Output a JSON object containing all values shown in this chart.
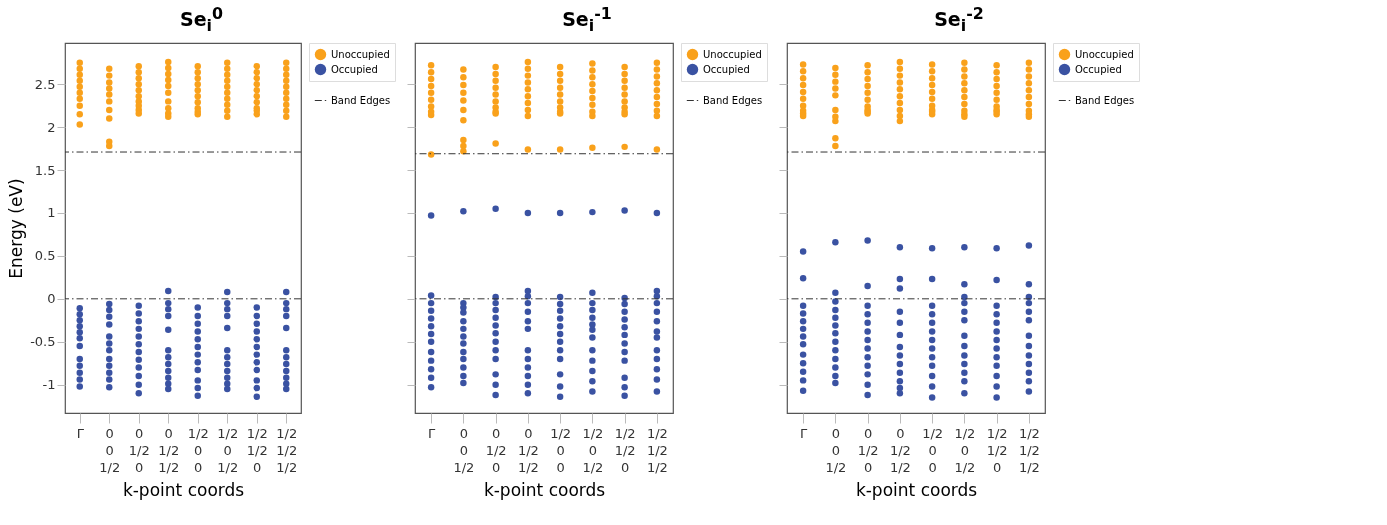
{
  "chart_data": [
    {
      "type": "scatter",
      "title": "Se$_{i}$$^{0}$",
      "xlabel": "k-point coords",
      "ylabel": "Energy (eV)",
      "categories": [
        "Γ",
        "0\n0\n1/2",
        "0\n1/2\n0",
        "0\n1/2\n1/2",
        "1/2\n0\n0",
        "1/2\n0\n1/2",
        "1/2\n1/2\n0",
        "1/2\n1/2\n1/2"
      ],
      "ylim": [
        -1.33,
        2.98
      ],
      "yticks": [
        -1,
        -0.5,
        0,
        0.5,
        1,
        1.5,
        2,
        2.5
      ],
      "legend": "right",
      "marker": "circle",
      "series": [
        {
          "name": "Unoccupied",
          "color": "#f9a11b",
          "x": [
            "Γ",
            "Γ",
            "Γ",
            "Γ",
            "Γ",
            "Γ",
            "Γ",
            "Γ",
            "Γ",
            "Γ",
            "0\n0\n1/2",
            "0\n0\n1/2",
            "0\n0\n1/2",
            "0\n0\n1/2",
            "0\n0\n1/2",
            "0\n0\n1/2",
            "0\n0\n1/2",
            "0\n0\n1/2",
            "0\n0\n1/2",
            "0\n0\n1/2",
            "0\n1/2\n0",
            "0\n1/2\n0",
            "0\n1/2\n0",
            "0\n1/2\n0",
            "0\n1/2\n0",
            "0\n1/2\n0",
            "0\n1/2\n0",
            "0\n1/2\n0",
            "0\n1/2\n0",
            "0\n1/2\n0",
            "0\n1/2\n1/2",
            "0\n1/2\n1/2",
            "0\n1/2\n1/2",
            "0\n1/2\n1/2",
            "0\n1/2\n1/2",
            "0\n1/2\n1/2",
            "0\n1/2\n1/2",
            "0\n1/2\n1/2",
            "0\n1/2\n1/2",
            "0\n1/2\n1/2",
            "1/2\n0\n0",
            "1/2\n0\n0",
            "1/2\n0\n0",
            "1/2\n0\n0",
            "1/2\n0\n0",
            "1/2\n0\n0",
            "1/2\n0\n0",
            "1/2\n0\n0",
            "1/2\n0\n0",
            "1/2\n0\n0",
            "1/2\n0\n1/2",
            "1/2\n0\n1/2",
            "1/2\n0\n1/2",
            "1/2\n0\n1/2",
            "1/2\n0\n1/2",
            "1/2\n0\n1/2",
            "1/2\n0\n1/2",
            "1/2\n0\n1/2",
            "1/2\n0\n1/2",
            "1/2\n0\n1/2",
            "1/2\n1/2\n0",
            "1/2\n1/2\n0",
            "1/2\n1/2\n0",
            "1/2\n1/2\n0",
            "1/2\n1/2\n0",
            "1/2\n1/2\n0",
            "1/2\n1/2\n0",
            "1/2\n1/2\n0",
            "1/2\n1/2\n0",
            "1/2\n1/2\n0",
            "1/2\n1/2\n1/2",
            "1/2\n1/2\n1/2",
            "1/2\n1/2\n1/2",
            "1/2\n1/2\n1/2",
            "1/2\n1/2\n1/2",
            "1/2\n1/2\n1/2",
            "1/2\n1/2\n1/2",
            "1/2\n1/2\n1/2",
            "1/2\n1/2\n1/2",
            "1/2\n1/2\n1/2"
          ],
          "values": [
            2.75,
            2.68,
            2.61,
            2.54,
            2.47,
            2.4,
            2.33,
            2.25,
            2.15,
            2.03,
            2.68,
            2.6,
            2.52,
            2.45,
            2.38,
            2.3,
            2.2,
            2.1,
            1.83,
            1.78,
            2.71,
            2.64,
            2.57,
            2.5,
            2.43,
            2.36,
            2.3,
            2.25,
            2.2,
            2.16,
            2.76,
            2.69,
            2.62,
            2.55,
            2.48,
            2.4,
            2.3,
            2.22,
            2.16,
            2.12,
            2.71,
            2.64,
            2.57,
            2.5,
            2.43,
            2.36,
            2.29,
            2.22,
            2.18,
            2.15,
            2.75,
            2.68,
            2.61,
            2.54,
            2.47,
            2.4,
            2.33,
            2.26,
            2.19,
            2.12,
            2.71,
            2.64,
            2.57,
            2.5,
            2.43,
            2.36,
            2.29,
            2.22,
            2.19,
            2.15,
            2.75,
            2.68,
            2.61,
            2.54,
            2.47,
            2.4,
            2.33,
            2.26,
            2.19,
            2.12
          ]
        },
        {
          "name": "Occupied",
          "color": "#3a52a2",
          "x": [
            "Γ",
            "Γ",
            "Γ",
            "Γ",
            "Γ",
            "Γ",
            "Γ",
            "Γ",
            "Γ",
            "Γ",
            "Γ",
            "Γ",
            "0\n0\n1/2",
            "0\n0\n1/2",
            "0\n0\n1/2",
            "0\n0\n1/2",
            "0\n0\n1/2",
            "0\n0\n1/2",
            "0\n0\n1/2",
            "0\n0\n1/2",
            "0\n0\n1/2",
            "0\n0\n1/2",
            "0\n0\n1/2",
            "0\n0\n1/2",
            "0\n1/2\n0",
            "0\n1/2\n0",
            "0\n1/2\n0",
            "0\n1/2\n0",
            "0\n1/2\n0",
            "0\n1/2\n0",
            "0\n1/2\n0",
            "0\n1/2\n0",
            "0\n1/2\n0",
            "0\n1/2\n0",
            "0\n1/2\n0",
            "0\n1/2\n0",
            "0\n1/2\n1/2",
            "0\n1/2\n1/2",
            "0\n1/2\n1/2",
            "0\n1/2\n1/2",
            "0\n1/2\n1/2",
            "0\n1/2\n1/2",
            "0\n1/2\n1/2",
            "0\n1/2\n1/2",
            "0\n1/2\n1/2",
            "0\n1/2\n1/2",
            "0\n1/2\n1/2",
            "0\n1/2\n1/2",
            "1/2\n0\n0",
            "1/2\n0\n0",
            "1/2\n0\n0",
            "1/2\n0\n0",
            "1/2\n0\n0",
            "1/2\n0\n0",
            "1/2\n0\n0",
            "1/2\n0\n0",
            "1/2\n0\n0",
            "1/2\n0\n0",
            "1/2\n0\n0",
            "1/2\n0\n0",
            "1/2\n0\n1/2",
            "1/2\n0\n1/2",
            "1/2\n0\n1/2",
            "1/2\n0\n1/2",
            "1/2\n0\n1/2",
            "1/2\n0\n1/2",
            "1/2\n0\n1/2",
            "1/2\n0\n1/2",
            "1/2\n0\n1/2",
            "1/2\n0\n1/2",
            "1/2\n0\n1/2",
            "1/2\n0\n1/2",
            "1/2\n1/2\n0",
            "1/2\n1/2\n0",
            "1/2\n1/2\n0",
            "1/2\n1/2\n0",
            "1/2\n1/2\n0",
            "1/2\n1/2\n0",
            "1/2\n1/2\n0",
            "1/2\n1/2\n0",
            "1/2\n1/2\n0",
            "1/2\n1/2\n0",
            "1/2\n1/2\n0",
            "1/2\n1/2\n0",
            "1/2\n1/2\n1/2",
            "1/2\n1/2\n1/2",
            "1/2\n1/2\n1/2",
            "1/2\n1/2\n1/2",
            "1/2\n1/2\n1/2",
            "1/2\n1/2\n1/2",
            "1/2\n1/2\n1/2",
            "1/2\n1/2\n1/2",
            "1/2\n1/2\n1/2",
            "1/2\n1/2\n1/2",
            "1/2\n1/2\n1/2",
            "1/2\n1/2\n1/2"
          ],
          "values": [
            -0.11,
            -0.18,
            -0.25,
            -0.32,
            -0.39,
            -0.46,
            -0.55,
            -0.7,
            -0.78,
            -0.86,
            -0.94,
            -1.02,
            -0.06,
            -0.13,
            -0.21,
            -0.3,
            -0.44,
            -0.52,
            -0.6,
            -0.7,
            -0.78,
            -0.86,
            -0.94,
            -1.03,
            -0.08,
            -0.17,
            -0.26,
            -0.35,
            -0.44,
            -0.53,
            -0.62,
            -0.71,
            -0.8,
            -0.9,
            -1.0,
            -1.1,
            0.09,
            -0.05,
            -0.12,
            -0.2,
            -0.36,
            -0.6,
            -0.68,
            -0.76,
            -0.84,
            -0.92,
            -0.99,
            -1.05,
            -0.1,
            -0.2,
            -0.29,
            -0.38,
            -0.47,
            -0.56,
            -0.65,
            -0.74,
            -0.83,
            -0.95,
            -1.04,
            -1.13,
            0.08,
            -0.05,
            -0.12,
            -0.2,
            -0.34,
            -0.6,
            -0.68,
            -0.76,
            -0.84,
            -0.92,
            -0.99,
            -1.05,
            -0.1,
            -0.2,
            -0.29,
            -0.38,
            -0.47,
            -0.56,
            -0.65,
            -0.74,
            -0.83,
            -0.95,
            -1.04,
            -1.14,
            0.08,
            -0.05,
            -0.12,
            -0.2,
            -0.34,
            -0.6,
            -0.68,
            -0.76,
            -0.84,
            -0.92,
            -0.99,
            -1.05
          ]
        }
      ],
      "ref_lines": [
        {
          "axis": "y",
          "value": 1.71,
          "label": "Band Edges",
          "color": "#333333",
          "line_style": "dashed"
        },
        {
          "axis": "y",
          "value": 0,
          "color": "#333333",
          "line_style": "dashed"
        }
      ]
    },
    {
      "type": "scatter",
      "title": "Se$_{i}$$^{-1}$",
      "xlabel": "k-point coords",
      "categories": [
        "Γ",
        "0\n0\n1/2",
        "0\n1/2\n0",
        "0\n1/2\n1/2",
        "1/2\n0\n0",
        "1/2\n0\n1/2",
        "1/2\n1/2\n0",
        "1/2\n1/2\n1/2"
      ],
      "ylim": [
        -1.33,
        2.98
      ],
      "yticks": [
        -1,
        -0.5,
        0,
        0.5,
        1,
        1.5,
        2,
        2.5
      ],
      "legend": "right",
      "marker": "circle",
      "tick_labels": "x",
      "series": [
        {
          "name": "Unoccupied",
          "color": "#f9a11b",
          "x": [
            "Γ",
            "Γ",
            "Γ",
            "Γ",
            "Γ",
            "Γ",
            "Γ",
            "Γ",
            "Γ",
            "Γ",
            "0\n0\n1/2",
            "0\n0\n1/2",
            "0\n0\n1/2",
            "0\n0\n1/2",
            "0\n0\n1/2",
            "0\n0\n1/2",
            "0\n0\n1/2",
            "0\n0\n1/2",
            "0\n0\n1/2",
            "0\n0\n1/2",
            "0\n1/2\n0",
            "0\n1/2\n0",
            "0\n1/2\n0",
            "0\n1/2\n0",
            "0\n1/2\n0",
            "0\n1/2\n0",
            "0\n1/2\n0",
            "0\n1/2\n0",
            "0\n1/2\n0",
            "0\n1/2\n0",
            "0\n1/2\n1/2",
            "0\n1/2\n1/2",
            "0\n1/2\n1/2",
            "0\n1/2\n1/2",
            "0\n1/2\n1/2",
            "0\n1/2\n1/2",
            "0\n1/2\n1/2",
            "0\n1/2\n1/2",
            "0\n1/2\n1/2",
            "0\n1/2\n1/2",
            "1/2\n0\n0",
            "1/2\n0\n0",
            "1/2\n0\n0",
            "1/2\n0\n0",
            "1/2\n0\n0",
            "1/2\n0\n0",
            "1/2\n0\n0",
            "1/2\n0\n0",
            "1/2\n0\n0",
            "1/2\n0\n0",
            "1/2\n0\n1/2",
            "1/2\n0\n1/2",
            "1/2\n0\n1/2",
            "1/2\n0\n1/2",
            "1/2\n0\n1/2",
            "1/2\n0\n1/2",
            "1/2\n0\n1/2",
            "1/2\n0\n1/2",
            "1/2\n0\n1/2",
            "1/2\n0\n1/2",
            "1/2\n1/2\n0",
            "1/2\n1/2\n0",
            "1/2\n1/2\n0",
            "1/2\n1/2\n0",
            "1/2\n1/2\n0",
            "1/2\n1/2\n0",
            "1/2\n1/2\n0",
            "1/2\n1/2\n0",
            "1/2\n1/2\n0",
            "1/2\n1/2\n0",
            "1/2\n1/2\n1/2",
            "1/2\n1/2\n1/2",
            "1/2\n1/2\n1/2",
            "1/2\n1/2\n1/2",
            "1/2\n1/2\n1/2",
            "1/2\n1/2\n1/2",
            "1/2\n1/2\n1/2",
            "1/2\n1/2\n1/2",
            "1/2\n1/2\n1/2",
            "1/2\n1/2\n1/2"
          ],
          "values": [
            2.72,
            2.64,
            2.56,
            2.48,
            2.4,
            2.32,
            2.24,
            2.18,
            2.14,
            1.68,
            2.67,
            2.58,
            2.49,
            2.4,
            2.31,
            2.2,
            2.08,
            1.85,
            1.78,
            1.72,
            2.7,
            2.62,
            2.54,
            2.46,
            2.38,
            2.3,
            2.23,
            2.18,
            2.16,
            1.81,
            2.76,
            2.68,
            2.6,
            2.52,
            2.44,
            2.36,
            2.28,
            2.2,
            2.13,
            1.74,
            2.7,
            2.62,
            2.54,
            2.46,
            2.38,
            2.3,
            2.23,
            2.18,
            2.16,
            1.74,
            2.74,
            2.66,
            2.58,
            2.5,
            2.42,
            2.34,
            2.26,
            2.18,
            2.13,
            1.76,
            2.7,
            2.62,
            2.54,
            2.46,
            2.38,
            2.3,
            2.23,
            2.18,
            2.15,
            1.77,
            2.75,
            2.67,
            2.59,
            2.51,
            2.43,
            2.35,
            2.27,
            2.19,
            2.13,
            1.74
          ]
        },
        {
          "name": "Occupied",
          "color": "#3a52a2",
          "x": [
            "Γ",
            "Γ",
            "Γ",
            "Γ",
            "Γ",
            "Γ",
            "Γ",
            "Γ",
            "Γ",
            "Γ",
            "Γ",
            "Γ",
            "Γ",
            "0\n0\n1/2",
            "0\n0\n1/2",
            "0\n0\n1/2",
            "0\n0\n1/2",
            "0\n0\n1/2",
            "0\n0\n1/2",
            "0\n0\n1/2",
            "0\n0\n1/2",
            "0\n0\n1/2",
            "0\n0\n1/2",
            "0\n0\n1/2",
            "0\n0\n1/2",
            "0\n0\n1/2",
            "0\n1/2\n0",
            "0\n1/2\n0",
            "0\n1/2\n0",
            "0\n1/2\n0",
            "0\n1/2\n0",
            "0\n1/2\n0",
            "0\n1/2\n0",
            "0\n1/2\n0",
            "0\n1/2\n0",
            "0\n1/2\n0",
            "0\n1/2\n0",
            "0\n1/2\n0",
            "0\n1/2\n0",
            "0\n1/2\n1/2",
            "0\n1/2\n1/2",
            "0\n1/2\n1/2",
            "0\n1/2\n1/2",
            "0\n1/2\n1/2",
            "0\n1/2\n1/2",
            "0\n1/2\n1/2",
            "0\n1/2\n1/2",
            "0\n1/2\n1/2",
            "0\n1/2\n1/2",
            "0\n1/2\n1/2",
            "0\n1/2\n1/2",
            "0\n1/2\n1/2",
            "1/2\n0\n0",
            "1/2\n0\n0",
            "1/2\n0\n0",
            "1/2\n0\n0",
            "1/2\n0\n0",
            "1/2\n0\n0",
            "1/2\n0\n0",
            "1/2\n0\n0",
            "1/2\n0\n0",
            "1/2\n0\n0",
            "1/2\n0\n0",
            "1/2\n0\n0",
            "1/2\n0\n0",
            "1/2\n0\n1/2",
            "1/2\n0\n1/2",
            "1/2\n0\n1/2",
            "1/2\n0\n1/2",
            "1/2\n0\n1/2",
            "1/2\n0\n1/2",
            "1/2\n0\n1/2",
            "1/2\n0\n1/2",
            "1/2\n0\n1/2",
            "1/2\n0\n1/2",
            "1/2\n0\n1/2",
            "1/2\n0\n1/2",
            "1/2\n0\n1/2",
            "1/2\n1/2\n0",
            "1/2\n1/2\n0",
            "1/2\n1/2\n0",
            "1/2\n1/2\n0",
            "1/2\n1/2\n0",
            "1/2\n1/2\n0",
            "1/2\n1/2\n0",
            "1/2\n1/2\n0",
            "1/2\n1/2\n0",
            "1/2\n1/2\n0",
            "1/2\n1/2\n0",
            "1/2\n1/2\n0",
            "1/2\n1/2\n0",
            "1/2\n1/2\n1/2",
            "1/2\n1/2\n1/2",
            "1/2\n1/2\n1/2",
            "1/2\n1/2\n1/2",
            "1/2\n1/2\n1/2",
            "1/2\n1/2\n1/2",
            "1/2\n1/2\n1/2",
            "1/2\n1/2\n1/2",
            "1/2\n1/2\n1/2",
            "1/2\n1/2\n1/2",
            "1/2\n1/2\n1/2",
            "1/2\n1/2\n1/2",
            "1/2\n1/2\n1/2"
          ],
          "values": [
            0.97,
            0.04,
            -0.05,
            -0.14,
            -0.23,
            -0.32,
            -0.41,
            -0.5,
            -0.62,
            -0.72,
            -0.82,
            -0.92,
            -1.03,
            1.02,
            -0.05,
            -0.1,
            -0.16,
            -0.26,
            -0.35,
            -0.44,
            -0.52,
            -0.62,
            -0.7,
            -0.8,
            -0.9,
            -0.98,
            1.05,
            0.02,
            -0.05,
            -0.13,
            -0.22,
            -0.31,
            -0.4,
            -0.5,
            -0.6,
            -0.7,
            -0.88,
            -1.0,
            -1.12,
            1.0,
            0.09,
            0.03,
            -0.05,
            -0.15,
            -0.26,
            -0.35,
            -0.6,
            -0.7,
            -0.8,
            -0.9,
            -1.0,
            -1.1,
            1.0,
            0.02,
            -0.06,
            -0.14,
            -0.23,
            -0.32,
            -0.41,
            -0.5,
            -0.6,
            -0.7,
            -0.88,
            -1.02,
            -1.14,
            1.01,
            0.07,
            -0.05,
            -0.13,
            -0.22,
            -0.3,
            -0.36,
            -0.45,
            -0.6,
            -0.72,
            -0.84,
            -0.96,
            -1.08,
            1.03,
            0.01,
            -0.06,
            -0.15,
            -0.24,
            -0.33,
            -0.42,
            -0.52,
            -0.62,
            -0.72,
            -0.92,
            -1.03,
            -1.13,
            1.0,
            0.09,
            0.03,
            -0.05,
            -0.15,
            -0.26,
            -0.38,
            -0.45,
            -0.6,
            -0.7,
            -0.82,
            -0.94,
            -1.08
          ]
        }
      ],
      "ref_lines": [
        {
          "axis": "y",
          "value": 1.69,
          "label": "Band Edges",
          "color": "#333333",
          "line_style": "dashed"
        },
        {
          "axis": "y",
          "value": 0,
          "color": "#333333",
          "line_style": "dashed"
        }
      ]
    },
    {
      "type": "scatter",
      "title": "Se$_{i}$$^{-2}$",
      "xlabel": "k-point coords",
      "categories": [
        "Γ",
        "0\n0\n1/2",
        "0\n1/2\n0",
        "0\n1/2\n1/2",
        "1/2\n0\n0",
        "1/2\n0\n1/2",
        "1/2\n1/2\n0",
        "1/2\n1/2\n1/2"
      ],
      "ylim": [
        -1.33,
        2.98
      ],
      "yticks": [
        -1,
        -0.5,
        0,
        0.5,
        1,
        1.5,
        2,
        2.5
      ],
      "legend": "right",
      "marker": "circle",
      "tick_labels": "x",
      "series": [
        {
          "name": "Unoccupied",
          "color": "#f9a11b",
          "x": [
            "Γ",
            "Γ",
            "Γ",
            "Γ",
            "Γ",
            "Γ",
            "Γ",
            "Γ",
            "Γ",
            "Γ",
            "0\n0\n1/2",
            "0\n0\n1/2",
            "0\n0\n1/2",
            "0\n0\n1/2",
            "0\n0\n1/2",
            "0\n0\n1/2",
            "0\n0\n1/2",
            "0\n0\n1/2",
            "0\n0\n1/2",
            "0\n0\n1/2",
            "0\n1/2\n0",
            "0\n1/2\n0",
            "0\n1/2\n0",
            "0\n1/2\n0",
            "0\n1/2\n0",
            "0\n1/2\n0",
            "0\n1/2\n0",
            "0\n1/2\n0",
            "0\n1/2\n0",
            "0\n1/2\n0",
            "0\n1/2\n1/2",
            "0\n1/2\n1/2",
            "0\n1/2\n1/2",
            "0\n1/2\n1/2",
            "0\n1/2\n1/2",
            "0\n1/2\n1/2",
            "0\n1/2\n1/2",
            "0\n1/2\n1/2",
            "0\n1/2\n1/2",
            "0\n1/2\n1/2",
            "1/2\n0\n0",
            "1/2\n0\n0",
            "1/2\n0\n0",
            "1/2\n0\n0",
            "1/2\n0\n0",
            "1/2\n0\n0",
            "1/2\n0\n0",
            "1/2\n0\n0",
            "1/2\n0\n0",
            "1/2\n0\n0",
            "1/2\n0\n1/2",
            "1/2\n0\n1/2",
            "1/2\n0\n1/2",
            "1/2\n0\n1/2",
            "1/2\n0\n1/2",
            "1/2\n0\n1/2",
            "1/2\n0\n1/2",
            "1/2\n0\n1/2",
            "1/2\n0\n1/2",
            "1/2\n0\n1/2",
            "1/2\n1/2\n0",
            "1/2\n1/2\n0",
            "1/2\n1/2\n0",
            "1/2\n1/2\n0",
            "1/2\n1/2\n0",
            "1/2\n1/2\n0",
            "1/2\n1/2\n0",
            "1/2\n1/2\n0",
            "1/2\n1/2\n0",
            "1/2\n1/2\n0",
            "1/2\n1/2\n1/2",
            "1/2\n1/2\n1/2",
            "1/2\n1/2\n1/2",
            "1/2\n1/2\n1/2",
            "1/2\n1/2\n1/2",
            "1/2\n1/2\n1/2",
            "1/2\n1/2\n1/2",
            "1/2\n1/2\n1/2",
            "1/2\n1/2\n1/2",
            "1/2\n1/2\n1/2"
          ],
          "values": [
            2.73,
            2.65,
            2.57,
            2.49,
            2.41,
            2.33,
            2.25,
            2.19,
            2.16,
            2.13,
            2.69,
            2.61,
            2.53,
            2.45,
            2.37,
            2.2,
            2.12,
            2.07,
            1.87,
            1.78,
            2.72,
            2.64,
            2.56,
            2.48,
            2.4,
            2.32,
            2.24,
            2.2,
            2.18,
            2.16,
            2.76,
            2.68,
            2.6,
            2.52,
            2.44,
            2.36,
            2.28,
            2.2,
            2.13,
            2.07,
            2.73,
            2.65,
            2.57,
            2.49,
            2.41,
            2.33,
            2.25,
            2.2,
            2.18,
            2.15,
            2.75,
            2.67,
            2.59,
            2.51,
            2.43,
            2.35,
            2.27,
            2.19,
            2.15,
            2.12,
            2.72,
            2.64,
            2.56,
            2.48,
            2.4,
            2.32,
            2.24,
            2.2,
            2.18,
            2.15,
            2.75,
            2.67,
            2.59,
            2.51,
            2.43,
            2.35,
            2.27,
            2.19,
            2.15,
            2.12
          ]
        },
        {
          "name": "Occupied",
          "color": "#3a52a2",
          "x": [
            "Γ",
            "Γ",
            "Γ",
            "Γ",
            "Γ",
            "Γ",
            "Γ",
            "Γ",
            "Γ",
            "Γ",
            "Γ",
            "Γ",
            "Γ",
            "0\n0\n1/2",
            "0\n0\n1/2",
            "0\n0\n1/2",
            "0\n0\n1/2",
            "0\n0\n1/2",
            "0\n0\n1/2",
            "0\n0\n1/2",
            "0\n0\n1/2",
            "0\n0\n1/2",
            "0\n0\n1/2",
            "0\n0\n1/2",
            "0\n0\n1/2",
            "0\n0\n1/2",
            "0\n1/2\n0",
            "0\n1/2\n0",
            "0\n1/2\n0",
            "0\n1/2\n0",
            "0\n1/2\n0",
            "0\n1/2\n0",
            "0\n1/2\n0",
            "0\n1/2\n0",
            "0\n1/2\n0",
            "0\n1/2\n0",
            "0\n1/2\n0",
            "0\n1/2\n0",
            "0\n1/2\n0",
            "0\n1/2\n1/2",
            "0\n1/2\n1/2",
            "0\n1/2\n1/2",
            "0\n1/2\n1/2",
            "0\n1/2\n1/2",
            "0\n1/2\n1/2",
            "0\n1/2\n1/2",
            "0\n1/2\n1/2",
            "0\n1/2\n1/2",
            "0\n1/2\n1/2",
            "0\n1/2\n1/2",
            "0\n1/2\n1/2",
            "0\n1/2\n1/2",
            "1/2\n0\n0",
            "1/2\n0\n0",
            "1/2\n0\n0",
            "1/2\n0\n0",
            "1/2\n0\n0",
            "1/2\n0\n0",
            "1/2\n0\n0",
            "1/2\n0\n0",
            "1/2\n0\n0",
            "1/2\n0\n0",
            "1/2\n0\n0",
            "1/2\n0\n0",
            "1/2\n0\n0",
            "1/2\n0\n1/2",
            "1/2\n0\n1/2",
            "1/2\n0\n1/2",
            "1/2\n0\n1/2",
            "1/2\n0\n1/2",
            "1/2\n0\n1/2",
            "1/2\n0\n1/2",
            "1/2\n0\n1/2",
            "1/2\n0\n1/2",
            "1/2\n0\n1/2",
            "1/2\n0\n1/2",
            "1/2\n0\n1/2",
            "1/2\n0\n1/2",
            "1/2\n1/2\n0",
            "1/2\n1/2\n0",
            "1/2\n1/2\n0",
            "1/2\n1/2\n0",
            "1/2\n1/2\n0",
            "1/2\n1/2\n0",
            "1/2\n1/2\n0",
            "1/2\n1/2\n0",
            "1/2\n1/2\n0",
            "1/2\n1/2\n0",
            "1/2\n1/2\n0",
            "1/2\n1/2\n0",
            "1/2\n1/2\n0",
            "1/2\n1/2\n1/2",
            "1/2\n1/2\n1/2",
            "1/2\n1/2\n1/2",
            "1/2\n1/2\n1/2",
            "1/2\n1/2\n1/2",
            "1/2\n1/2\n1/2",
            "1/2\n1/2\n1/2",
            "1/2\n1/2\n1/2",
            "1/2\n1/2\n1/2",
            "1/2\n1/2\n1/2",
            "1/2\n1/2\n1/2",
            "1/2\n1/2\n1/2",
            "1/2\n1/2\n1/2"
          ],
          "values": [
            0.55,
            0.24,
            -0.08,
            -0.17,
            -0.26,
            -0.35,
            -0.44,
            -0.53,
            -0.65,
            -0.75,
            -0.85,
            -0.95,
            -1.07,
            0.66,
            0.07,
            -0.03,
            -0.13,
            -0.22,
            -0.31,
            -0.4,
            -0.5,
            -0.6,
            -0.7,
            -0.8,
            -0.9,
            -0.98,
            0.68,
            0.15,
            -0.08,
            -0.18,
            -0.28,
            -0.38,
            -0.48,
            -0.58,
            -0.68,
            -0.78,
            -0.88,
            -1.0,
            -1.12,
            0.6,
            0.23,
            0.12,
            -0.15,
            -0.28,
            -0.42,
            -0.56,
            -0.66,
            -0.76,
            -0.86,
            -0.96,
            -1.04,
            -1.1,
            0.59,
            0.23,
            -0.08,
            -0.18,
            -0.28,
            -0.38,
            -0.48,
            -0.58,
            -0.68,
            -0.78,
            -0.9,
            -1.02,
            -1.15,
            0.6,
            0.17,
            0.02,
            -0.05,
            -0.15,
            -0.25,
            -0.43,
            -0.55,
            -0.66,
            -0.76,
            -0.86,
            -0.96,
            -1.1,
            0.59,
            0.22,
            -0.08,
            -0.18,
            -0.28,
            -0.38,
            -0.48,
            -0.58,
            -0.68,
            -0.78,
            -0.9,
            -1.02,
            -1.15,
            0.62,
            0.17,
            0.02,
            -0.05,
            -0.15,
            -0.25,
            -0.43,
            -0.55,
            -0.66,
            -0.76,
            -0.86,
            -0.96,
            -1.08
          ]
        }
      ],
      "ref_lines": [
        {
          "axis": "y",
          "value": 1.71,
          "label": "Band Edges",
          "color": "#333333",
          "line_style": "dashed"
        },
        {
          "axis": "y",
          "value": 0,
          "color": "#333333",
          "line_style": "dashed"
        }
      ]
    }
  ]
}
